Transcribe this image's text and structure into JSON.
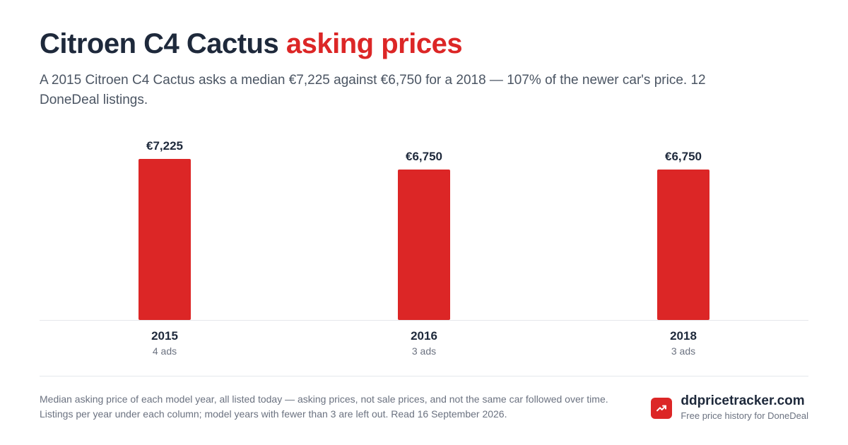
{
  "header": {
    "title_main": "Citroen C4 Cactus",
    "title_accent": "asking prices",
    "subtitle": "A 2015 Citroen C4 Cactus asks a median €7,225 against €6,750 for a 2018 — 107% of the newer car's price. 12 DoneDeal listings."
  },
  "chart_data": {
    "type": "bar",
    "categories": [
      "2015",
      "2016",
      "2018"
    ],
    "values": [
      7225,
      6750,
      6750
    ],
    "value_labels": [
      "€7,225",
      "€6,750",
      "€6,750"
    ],
    "counts": [
      "4 ads",
      "3 ads",
      "3 ads"
    ],
    "bar_color": "#dc2626",
    "grid": false
  },
  "footer": {
    "note": "Median asking price of each model year, all listed today — asking prices, not sale prices, and not the same car followed over time. Listings per year under each column; model years with fewer than 3 are left out. Read 16 September 2026.",
    "brand_name": "ddpricetracker.com",
    "brand_tagline": "Free price history for DoneDeal",
    "brand_icon": "trending-up-icon",
    "brand_color": "#dc2626"
  }
}
